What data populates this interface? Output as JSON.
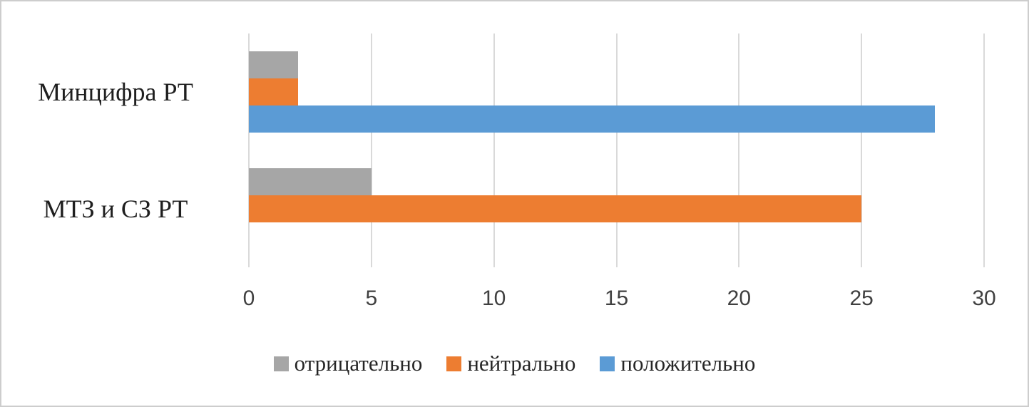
{
  "chart_data": {
    "type": "bar",
    "orientation": "horizontal",
    "title": "",
    "xlabel": "",
    "ylabel": "",
    "categories": [
      "Минцифра РТ",
      "МТЗ и СЗ РТ"
    ],
    "series": [
      {
        "name": "отрицательно",
        "color": "#A6A6A6",
        "values": [
          2,
          5
        ]
      },
      {
        "name": "нейтрально",
        "color": "#ED7D31",
        "values": [
          2,
          25
        ]
      },
      {
        "name": "положительно",
        "color": "#5B9BD5",
        "values": [
          28,
          0
        ]
      }
    ],
    "x_axis": {
      "min": 0,
      "max": 30,
      "tick_step": 5,
      "ticks": [
        0,
        5,
        10,
        15,
        20,
        25,
        30
      ]
    },
    "grid": true,
    "legend_position": "bottom"
  },
  "style": {
    "grid_color": "#D9D9D9",
    "tick_text_color": "#404040",
    "category_text_color": "#1F1F1F",
    "figure_border_color": "#CDCDCD",
    "background": "#FFFFFF"
  }
}
